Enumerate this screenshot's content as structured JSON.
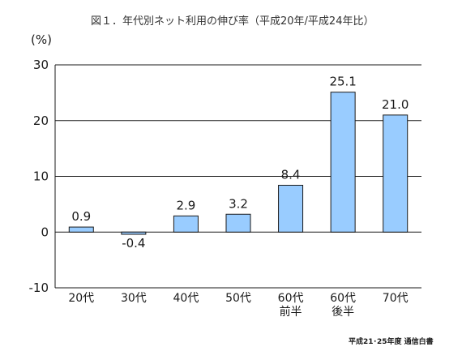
{
  "chart_data": {
    "type": "bar",
    "title": "図１．年代別ネット利用の伸び率（平成20年/平成24年比）",
    "ylabel": "(%)",
    "xlabel": "",
    "categories": [
      [
        "20代"
      ],
      [
        "30代"
      ],
      [
        "40代"
      ],
      [
        "50代"
      ],
      [
        "60代",
        "前半"
      ],
      [
        "60代",
        "後半"
      ],
      [
        "70代"
      ]
    ],
    "values": [
      0.9,
      -0.4,
      2.9,
      3.2,
      8.4,
      25.1,
      21.0
    ],
    "value_labels": [
      "0.9",
      "-0.4",
      "2.9",
      "3.2",
      "8.4",
      "25.1",
      "21.0"
    ],
    "ylim": [
      -10,
      30
    ],
    "yticks": [
      30,
      20,
      10,
      0,
      -10
    ],
    "grid": true,
    "legend": "none",
    "bar_color": "#99ccff",
    "bar_stroke": "#1a1a1a"
  },
  "source": "平成21･25年度 通信白書"
}
